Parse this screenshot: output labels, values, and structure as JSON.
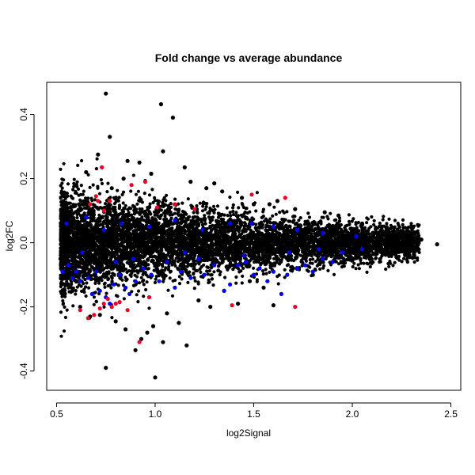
{
  "chart_data": {
    "type": "scatter",
    "title": "Fold change vs average abundance",
    "xlabel": "log2Signal",
    "ylabel": "log2FC",
    "xlim": [
      0.45,
      2.55
    ],
    "ylim": [
      -0.46,
      0.5
    ],
    "xticks": [
      {
        "value": 0.5,
        "label": "0.5"
      },
      {
        "value": 1.0,
        "label": "1.0"
      },
      {
        "value": 1.5,
        "label": "1.5"
      },
      {
        "value": 2.0,
        "label": "2.0"
      },
      {
        "value": 2.5,
        "label": "2.5"
      }
    ],
    "yticks": [
      {
        "value": -0.4,
        "label": "-0.4"
      },
      {
        "value": -0.2,
        "label": "-0.2"
      },
      {
        "value": 0.0,
        "label": "0.0"
      },
      {
        "value": 0.2,
        "label": "0.2"
      },
      {
        "value": 0.4,
        "label": "0.4"
      }
    ],
    "grid": false,
    "legend": "none",
    "series": [
      {
        "color": "#000000",
        "points": [
          [
            0.75,
            0.465
          ],
          [
            1.03,
            0.432
          ],
          [
            1.09,
            0.39
          ],
          [
            0.77,
            0.33
          ],
          [
            0.71,
            0.275
          ],
          [
            0.86,
            0.255
          ],
          [
            1.04,
            0.285
          ],
          [
            0.92,
            0.25
          ],
          [
            1.15,
            0.235
          ],
          [
            0.65,
            0.22
          ],
          [
            0.98,
            0.215
          ],
          [
            1.26,
            0.17
          ],
          [
            1.18,
            0.19
          ],
          [
            1.34,
            0.16
          ],
          [
            1.44,
            0.14
          ],
          [
            1.58,
            0.12
          ],
          [
            1.71,
            0.105
          ],
          [
            1.86,
            0.095
          ],
          [
            1.93,
            0.085
          ],
          [
            2.05,
            0.06
          ],
          [
            2.12,
            0.045
          ],
          [
            2.22,
            0.03
          ],
          [
            2.35,
            0.01
          ],
          [
            2.43,
            -0.005
          ],
          [
            1.62,
            0.13
          ],
          [
            1.5,
            0.12
          ],
          [
            1.3,
            0.185
          ],
          [
            0.84,
            0.2
          ],
          [
            0.78,
            0.17
          ],
          [
            0.6,
            0.18
          ],
          [
            0.54,
            0.1
          ],
          [
            0.53,
            0.06
          ],
          [
            0.52,
            -0.05
          ],
          [
            0.54,
            -0.1
          ],
          [
            0.58,
            -0.15
          ],
          [
            0.62,
            -0.2
          ],
          [
            0.67,
            -0.23
          ],
          [
            0.75,
            -0.39
          ],
          [
            1.0,
            -0.42
          ],
          [
            1.16,
            -0.32
          ],
          [
            1.04,
            -0.31
          ],
          [
            0.9,
            -0.335
          ],
          [
            0.93,
            -0.3
          ],
          [
            0.85,
            -0.27
          ],
          [
            0.99,
            -0.26
          ],
          [
            1.12,
            -0.25
          ],
          [
            1.28,
            -0.2
          ],
          [
            1.42,
            -0.19
          ],
          [
            1.6,
            -0.195
          ],
          [
            1.55,
            -0.14
          ],
          [
            1.8,
            -0.1
          ],
          [
            2.0,
            -0.05
          ],
          [
            2.2,
            -0.03
          ],
          [
            2.3,
            0.02
          ],
          [
            0.72,
            -0.225
          ],
          [
            0.8,
            -0.245
          ],
          [
            1.22,
            -0.18
          ],
          [
            1.35,
            -0.15
          ],
          [
            1.48,
            -0.12
          ],
          [
            1.7,
            -0.08
          ],
          [
            1.9,
            -0.06
          ],
          [
            0.96,
            -0.28
          ],
          [
            1.06,
            -0.22
          ]
        ]
      },
      {
        "color": "#0000ff",
        "points": [
          [
            0.53,
            -0.09
          ],
          [
            0.56,
            -0.07
          ],
          [
            0.6,
            -0.09
          ],
          [
            0.62,
            -0.12
          ],
          [
            0.66,
            -0.11
          ],
          [
            0.7,
            -0.09
          ],
          [
            0.72,
            -0.15
          ],
          [
            0.75,
            -0.17
          ],
          [
            0.77,
            -0.19
          ],
          [
            0.79,
            -0.13
          ],
          [
            0.82,
            -0.1
          ],
          [
            0.85,
            -0.14
          ],
          [
            0.87,
            -0.16
          ],
          [
            0.9,
            -0.12
          ],
          [
            0.94,
            -0.08
          ],
          [
            0.98,
            -0.1
          ],
          [
            1.02,
            -0.12
          ],
          [
            1.06,
            -0.06
          ],
          [
            1.1,
            -0.14
          ],
          [
            1.13,
            -0.09
          ],
          [
            1.18,
            -0.11
          ],
          [
            1.22,
            -0.05
          ],
          [
            1.25,
            -0.1
          ],
          [
            1.3,
            -0.07
          ],
          [
            1.35,
            -0.15
          ],
          [
            1.38,
            -0.13
          ],
          [
            1.42,
            -0.07
          ],
          [
            1.46,
            -0.06
          ],
          [
            1.5,
            -0.1
          ],
          [
            1.53,
            -0.08
          ],
          [
            1.57,
            -0.12
          ],
          [
            1.6,
            -0.09
          ],
          [
            1.64,
            -0.16
          ],
          [
            1.67,
            -0.1
          ],
          [
            1.72,
            -0.08
          ],
          [
            1.76,
            -0.07
          ],
          [
            1.8,
            -0.09
          ],
          [
            1.85,
            -0.05
          ],
          [
            1.9,
            -0.06
          ],
          [
            1.95,
            -0.03
          ],
          [
            0.55,
            0.06
          ],
          [
            0.65,
            0.08
          ],
          [
            0.74,
            0.04
          ],
          [
            0.83,
            0.06
          ],
          [
            0.97,
            0.05
          ],
          [
            1.1,
            0.07
          ],
          [
            1.24,
            0.04
          ],
          [
            1.38,
            0.06
          ],
          [
            1.49,
            0.06
          ],
          [
            1.6,
            0.05
          ],
          [
            1.72,
            0.04
          ],
          [
            1.85,
            0.03
          ],
          [
            2.02,
            0.02
          ],
          [
            0.63,
            -0.03
          ],
          [
            0.89,
            -0.05
          ],
          [
            1.15,
            -0.03
          ],
          [
            1.45,
            -0.04
          ],
          [
            1.68,
            -0.03
          ],
          [
            1.83,
            -0.02
          ],
          [
            2.05,
            -0.02
          ],
          [
            0.58,
            -0.11
          ],
          [
            0.68,
            -0.16
          ],
          [
            0.8,
            -0.06
          ]
        ]
      },
      {
        "color": "#e8002a",
        "points": [
          [
            0.62,
            -0.21
          ],
          [
            0.66,
            -0.235
          ],
          [
            0.69,
            -0.225
          ],
          [
            0.72,
            -0.205
          ],
          [
            0.74,
            -0.19
          ],
          [
            0.78,
            -0.2
          ],
          [
            0.8,
            -0.19
          ],
          [
            0.82,
            -0.185
          ],
          [
            0.92,
            -0.31
          ],
          [
            1.39,
            -0.195
          ],
          [
            1.71,
            -0.2
          ],
          [
            0.73,
            0.235
          ],
          [
            0.67,
            0.12
          ],
          [
            0.71,
            0.13
          ],
          [
            0.74,
            0.1
          ],
          [
            0.88,
            0.18
          ],
          [
            0.95,
            0.19
          ],
          [
            1.01,
            0.11
          ],
          [
            1.1,
            0.12
          ],
          [
            1.2,
            0.105
          ],
          [
            1.49,
            0.15
          ],
          [
            1.66,
            0.14
          ],
          [
            0.7,
            0.145
          ],
          [
            0.77,
            0.13
          ],
          [
            0.97,
            -0.17
          ],
          [
            0.86,
            -0.21
          ],
          [
            0.76,
            -0.175
          ]
        ]
      }
    ]
  }
}
